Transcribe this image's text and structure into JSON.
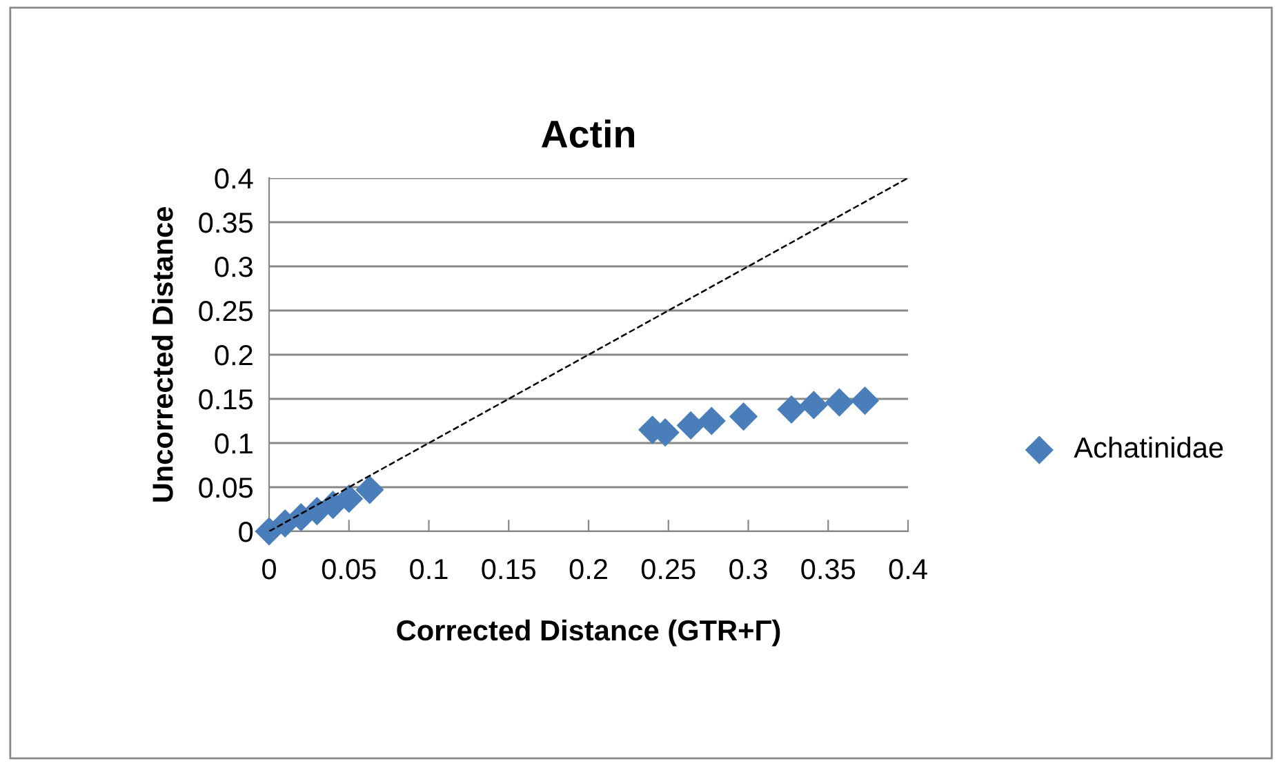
{
  "chart_data": {
    "type": "scatter",
    "title": "Actin",
    "xlabel": "Corrected Distance (GTR+Γ)",
    "ylabel": "Uncorrected Distance",
    "xlim": [
      0,
      0.4
    ],
    "ylim": [
      0,
      0.4
    ],
    "xticks": [
      0,
      0.05,
      0.1,
      0.15,
      0.2,
      0.25,
      0.3,
      0.35,
      0.4
    ],
    "yticks": [
      0,
      0.05,
      0.1,
      0.15,
      0.2,
      0.25,
      0.3,
      0.35,
      0.4
    ],
    "grid": "y",
    "legend": "right",
    "series": [
      {
        "name": "Achatinidae",
        "color": "#4a7ebb",
        "marker": "diamond",
        "x": [
          0,
          0.01,
          0.02,
          0.03,
          0.04,
          0.05,
          0.063,
          0.24,
          0.248,
          0.264,
          0.277,
          0.297,
          0.327,
          0.341,
          0.357,
          0.373
        ],
        "values": [
          0,
          0.009,
          0.016,
          0.023,
          0.03,
          0.037,
          0.047,
          0.115,
          0.112,
          0.12,
          0.125,
          0.13,
          0.138,
          0.143,
          0.146,
          0.148
        ]
      },
      {
        "type": "line",
        "color": "#000000",
        "line_style": "dashed",
        "marker": "none",
        "x": [
          0,
          0.4
        ],
        "values": [
          0,
          0.4
        ]
      }
    ]
  }
}
